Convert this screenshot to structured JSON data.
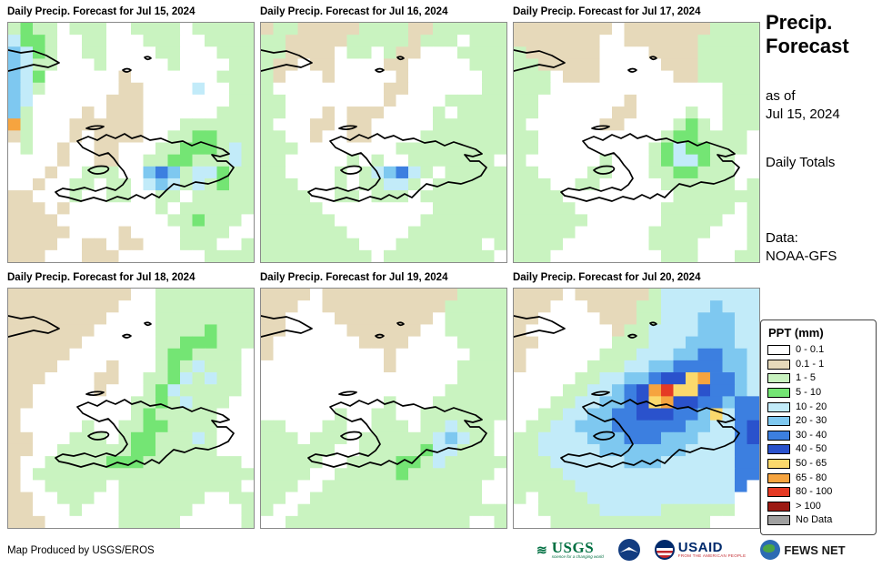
{
  "panels": [
    {
      "title": "Daily Precip. Forecast for Jul 15, 2024",
      "grid": [
        "gGgg.ggg..gggg.ggggg",
        "cGGg..gg...ggg..gggg",
        "CcGg..gg....gg...ggg",
        "Ccgg...g.....g....gg",
        "CcG......t.......ggg",
        "Ccg......tt....c..gg",
        "Cc......ttt.......gg",
        "Cg....t.ttt......ggg",
        "og...tttttt...gggggg",
        "tg...t.tttt..ggGGggg",
        ".g..t..tt...ggGGGgcg",
        "....t..tt..ggGGgggcg",
        "...t..ggg..CbCgccGgg",
        "..t..gg.gg.cCcgcgGgg",
        "tt...g..gg..gg.ggggg",
        "ttt.t.......g.gggggg",
        "tttt.........ggGggg.",
        "ttttt....t....gggg..",
        "tttt..tt.tt...ggg..g",
        "ttt...ttt.......gggg"
      ]
    },
    {
      "title": "Daily Precip. Forecast for Jul 16, 2024",
      "grid": [
        "tggtttttggggttgggggg",
        "ggtttttgggggtggg.ggg",
        "ggtttt.gg.gtt...gggg",
        "gtt.tt....tt.....ggg",
        "gt...t.....t......gg",
        "g.........tt......gg",
        "gg........t....ggggg",
        "gg...t.ttt....g.gggg",
        "g...tt.tt.....gggggg",
        "gg..t..tt....ggggggg",
        "ggg........ggggggggg",
        "gg.....g.g..ggggggg.",
        "gg....g.gcCbcg.ggggg",
        "ggg...g.ggccg.gggggg",
        "gggg..gg.ggg.ggggggg",
        "ggggg.........gggggg",
        "gggggg.......ggggggg",
        "ggggggg.....gggggggg",
        "gggggggg...ggggggg.g",
        "ggggggggg.ggggggggg."
      ]
    },
    {
      "title": "Daily Precip. Forecast for Jul 17, 2024",
      "grid": [
        "tttttttt.tttttttgggg",
        "ttttttt..ttttttggggg",
        "gtttttt....ttttggggg",
        "ggttttt.....tttggggg",
        "ggg.ttt......ttggggg",
        "ggg..............ggg",
        "gg.......t.......ggg",
        "gg......tt....g..ggg",
        "g......tt....gGg.ggg",
        "gg..........gGGgggg.",
        "gg.........gGcGGggg.",
        "g......g...gGccGgg..",
        "gg....gg...ggGGggg..",
        "ggg..gg.....gggggg.g",
        "gggg.........ggggggg",
        "ggggg.......gggggg.g",
        "gggggg......ggggg..g",
        "ggggg......ggggg...g",
        "gggg.......gggg....g",
        "ggg.........ggg...gg"
      ]
    },
    {
      "title": "Daily Precip. Forecast for Jul 18, 2024",
      "grid": [
        "tttttttttt..gggggggg",
        "ttttttttt...gggggggg",
        "tttttttt....gggggggg",
        "ttttttt.....ggggGggg",
        "tttttt......ggGGGggg",
        "ttttt.......gGGgggg.",
        "tttt....t...gGgcggg.",
        "ttt....tt..ggGcgcgg.",
        "tt.....t...gGcggggg.",
        "tt........ggGgcggg..",
        "t.........gGggggg...",
        "t.....g..ggGGgggg...",
        "tt...ggg.gGGgggcg...",
        "tt..ggggggGGggggg...",
        "t..gggggGGGgggggggg.",
        "t.gggggggggggggggggg",
        "t..ggggg.gggggggggg.",
        "tt..ggg..ggggggg..gg",
        "tt...g...gggggg....g",
        "ttt......ggggg.....g"
      ]
    },
    {
      "title": "Daily Precip. Forecast for Jul 19, 2024",
      "grid": [
        "tttt.tttttttttttgggg",
        "ttt..ttttttttttggggg",
        "tt....tttttttt.ggggg",
        "tt.....tttttt..ggggg",
        "t.......tttt....gggg",
        "t.........t......ggg",
        "..........t.....gggg",
        "................gggg",
        "...............ggggg",
        "..........g...gggggg",
        "......g..gg..ggggggg",
        "gg...gg..ggg.ggcggg.",
        "ggg.ggg.ggggggcCcgg.",
        "gggggg..gggggGccggg.",
        "ggggg..ggggGGgcggggg",
        "gggg..gggggGggggggg.",
        "ggg..ggggggggggggg..",
        "gg..gggggggggggggg..",
        "g..ggggggggggggggggg",
        "..ggggggggggggggg..g"
      ]
    },
    {
      "title": "Daily Precip. Forecast for Jul 20, 2024",
      "grid": [
        "tttt.ttttttgcccccccc",
        "ttt...ttttggccccCccc",
        "tt.....tttggcccCCCcc",
        "t.......tggccccCCCcc",
        "tt......gggcccCCCCcc",
        "t......gggcccCCbbCCc",
        "t.....gggccCCbbbbCCc",
        ".....ggccCCbBByobbCc",
        "....ggccCbBoryyBbbCc",
        "...ggccCCbByoBBbbCbb",
        "..ggccCCbbBBBbbCycbb",
        ".ggccCCCbbbbbbCCccbB",
        "ggccccCCCbbbCCCcccbB",
        "ggcccccCCCCCCCccccbb",
        "gggccccccCCCccccccbb",
        "ggggccccccccccccccbb",
        "gggggcccccccccccccb.",
        "g.ggggcccccccccccc..",
        "..gggggcccccgggggg..",
        "...ggggggggggggg...."
      ]
    }
  ],
  "palette": {
    ".": "#ffffff",
    "t": "#e6d9ba",
    "g": "#c9f3c0",
    "G": "#74e574",
    "c": "#c2ebf9",
    "C": "#7ec8f0",
    "b": "#3c7fe0",
    "B": "#2a52cc",
    "y": "#fbd96c",
    "o": "#f6a43f",
    "r": "#e53a24",
    "R": "#9c1a13",
    "n": "#a0a0a0"
  },
  "coast": {
    "paths": [
      "M 76,130 L 88,125 L 98,129 L 108,123 L 118,127 L 128,122 L 136,127 L 146,124 L 156,129 L 168,127 L 180,132 L 192,130 L 202,135 L 212,131 L 224,135 L 236,139 L 243,144 L 233,147 L 224,145 L 230,152 L 240,152 L 248,159 L 242,168 L 232,173 L 220,177 L 206,175 L 194,180 L 182,177 L 174,184 L 166,192 L 158,188 L 150,193 L 141,189 L 132,194 L 120,191 L 108,196 L 94,192 L 80,196 L 66,192 L 56,190 L 52,186 L 60,182 L 72,184 L 84,181 L 96,185 L 108,181 L 118,184 L 126,178 L 131,171 L 127,163 L 121,156 L 116,149 L 110,143 L 100,146 L 90,141 L 82,137 Z",
      "M 0,30 L 14,33 L 28,31 L 42,36 L 56,44 L 44,49 L 28,46 L 12,50 L 0,53",
      "M 88,162 Q 96,156 108,158 Q 114,161 105,165 Q 94,168 88,162 Z",
      "M 86,116 Q 95,112 105,114 Q 97,119 86,116 Z",
      "M 126,52 Q 131,49 135,52 Q 130,56 126,52 Z",
      "M 150,38 Q 154,36 157,39 Q 153,42 150,38 Z"
    ]
  },
  "sidebar": {
    "title_line1": "Precip.",
    "title_line2": "Forecast",
    "asof_line1": "as of",
    "asof_line2": "Jul 15, 2024",
    "daily_totals": "Daily Totals",
    "data_line1": "Data:",
    "data_line2": "NOAA-GFS"
  },
  "legend": {
    "title": "PPT (mm)",
    "entries": [
      {
        "label": "0 - 0.1",
        "color": "#ffffff"
      },
      {
        "label": "0.1 - 1",
        "color": "#e6d9ba"
      },
      {
        "label": "1 - 5",
        "color": "#c9f3c0"
      },
      {
        "label": "5 - 10",
        "color": "#74e574"
      },
      {
        "label": "10 - 20",
        "color": "#c2ebf9"
      },
      {
        "label": "20 - 30",
        "color": "#7ec8f0"
      },
      {
        "label": "30 - 40",
        "color": "#3c7fe0"
      },
      {
        "label": "40 - 50",
        "color": "#2a52cc"
      },
      {
        "label": "50 - 65",
        "color": "#fbd96c"
      },
      {
        "label": "65 - 80",
        "color": "#f6a43f"
      },
      {
        "label": "80 - 100",
        "color": "#e53a24"
      },
      {
        "label": "> 100",
        "color": "#9c1a13"
      },
      {
        "label": "No Data",
        "color": "#a0a0a0"
      }
    ]
  },
  "footer": {
    "credit": "Map Produced by USGS/EROS"
  },
  "logos": {
    "usgs_text": "USGS",
    "usgs_tagline": "science for a changing world",
    "usaid_text": "USAID",
    "usaid_tagline": "FROM THE AMERICAN PEOPLE",
    "fewsnet_text": "FEWS NET"
  }
}
